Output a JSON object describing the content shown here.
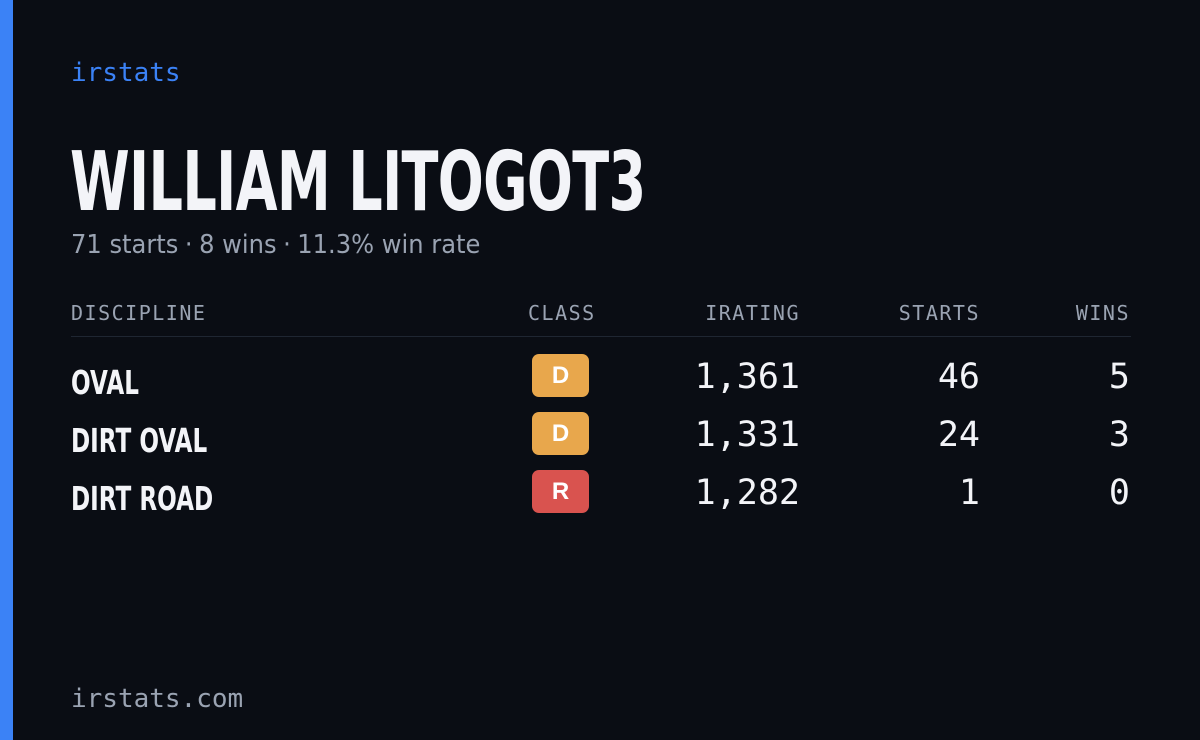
{
  "brand": "irstats",
  "driver": {
    "name": "WILLIAM LITOGOT3",
    "starts": "71 starts",
    "wins": "8 wins",
    "win_rate": "11.3% win rate",
    "separator": "·"
  },
  "table": {
    "headers": {
      "discipline": "DISCIPLINE",
      "class": "CLASS",
      "irating": "IRATING",
      "starts": "STARTS",
      "wins": "WINS"
    },
    "rows": [
      {
        "discipline": "OVAL",
        "class": "D",
        "class_color": "#e8a74c",
        "irating": "1,361",
        "starts": "46",
        "wins": "5"
      },
      {
        "discipline": "DIRT OVAL",
        "class": "D",
        "class_color": "#e8a74c",
        "irating": "1,331",
        "starts": "24",
        "wins": "3"
      },
      {
        "discipline": "DIRT ROAD",
        "class": "R",
        "class_color": "#d9534f",
        "irating": "1,282",
        "starts": "1",
        "wins": "0"
      }
    ]
  },
  "footer": "irstats.com",
  "colors": {
    "accent": "#3b82f6",
    "background": "#0a0d14",
    "text_primary": "#f3f4f8",
    "text_muted": "#9aa3b2"
  }
}
